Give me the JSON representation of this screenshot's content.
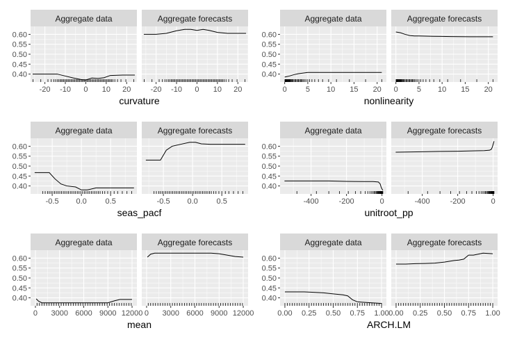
{
  "chart_data": [
    {
      "type": "line",
      "xlabel": "curvature",
      "facets": [
        "Aggregate data",
        "Aggregate forecasts"
      ],
      "ylim": [
        0.36,
        0.64
      ],
      "yticks": [
        0.4,
        0.45,
        0.5,
        0.55,
        0.6
      ],
      "ytick_labels": [
        "0.40",
        "0.45",
        "0.50",
        "0.55",
        "0.60"
      ],
      "xlim": [
        -27,
        25
      ],
      "xticks": [
        -20,
        -10,
        0,
        10,
        20
      ],
      "xtick_labels": [
        "-20",
        "-10",
        "0",
        "10",
        "20"
      ],
      "series": [
        {
          "facet": "Aggregate data",
          "x": [
            -26,
            -18,
            -14,
            -10,
            -6,
            -2,
            0,
            3,
            6,
            9,
            12,
            18,
            24
          ],
          "y": [
            0.4,
            0.4,
            0.4,
            0.39,
            0.38,
            0.372,
            0.37,
            0.38,
            0.378,
            0.382,
            0.393,
            0.395,
            0.395
          ]
        },
        {
          "facet": "Aggregate forecasts",
          "x": [
            -26,
            -20,
            -15,
            -10,
            -6,
            -3,
            0,
            3,
            6,
            10,
            15,
            20,
            24
          ],
          "y": [
            0.6,
            0.6,
            0.605,
            0.618,
            0.625,
            0.625,
            0.62,
            0.625,
            0.62,
            0.61,
            0.605,
            0.605,
            0.605
          ]
        }
      ],
      "rug": [
        -25.8,
        -22,
        -18.5,
        -16.9,
        -15.7,
        -14.8,
        -14.0,
        -13.3,
        -12.6,
        -12.0,
        -11.4,
        -10.8,
        -10.2,
        -9.6,
        -9.0,
        -8.4,
        -7.8,
        -7.2,
        -6.6,
        -6.0,
        -5.4,
        -4.8,
        -4.2,
        -3.6,
        -3.0,
        -2.4,
        -1.8,
        -1.2,
        -0.6,
        0,
        0.6,
        1.2,
        1.8,
        2.4,
        3.0,
        3.6,
        4.2,
        4.8,
        5.4,
        6.0,
        6.6,
        7.2,
        7.8,
        8.4,
        9.0,
        9.6,
        10.2,
        10.8,
        11.4,
        12.0,
        12.6,
        13.3,
        14.2,
        15.5,
        17.2,
        19.6,
        23.5
      ],
      "grid": true
    },
    {
      "type": "line",
      "xlabel": "nonlinearity",
      "facets": [
        "Aggregate data",
        "Aggregate forecasts"
      ],
      "ylim": [
        0.36,
        0.64
      ],
      "yticks": [
        0.4,
        0.45,
        0.5,
        0.55,
        0.6
      ],
      "ytick_labels": [
        "0.40",
        "0.45",
        "0.50",
        "0.55",
        "0.60"
      ],
      "xlim": [
        -1,
        22
      ],
      "xticks": [
        0,
        5,
        10,
        15,
        20
      ],
      "xtick_labels": [
        "0",
        "5",
        "10",
        "15",
        "20"
      ],
      "series": [
        {
          "facet": "Aggregate data",
          "x": [
            0,
            1,
            2,
            3,
            4,
            5,
            8,
            12,
            16,
            21
          ],
          "y": [
            0.385,
            0.39,
            0.397,
            0.402,
            0.405,
            0.408,
            0.408,
            0.408,
            0.408,
            0.408
          ]
        },
        {
          "facet": "Aggregate forecasts",
          "x": [
            0,
            1,
            2,
            3,
            4,
            5,
            8,
            12,
            16,
            21
          ],
          "y": [
            0.612,
            0.608,
            0.6,
            0.594,
            0.592,
            0.592,
            0.59,
            0.589,
            0.588,
            0.588
          ]
        }
      ],
      "rug": [
        0.05,
        0.1,
        0.15,
        0.2,
        0.25,
        0.3,
        0.35,
        0.4,
        0.5,
        0.6,
        0.7,
        0.8,
        0.9,
        1.0,
        1.1,
        1.2,
        1.35,
        1.5,
        1.65,
        1.8,
        2.0,
        2.2,
        2.4,
        2.6,
        2.8,
        3.0,
        3.2,
        3.4,
        3.6,
        3.8,
        4.0,
        4.3,
        4.6,
        5.0,
        5.4,
        5.9,
        6.5,
        7.3,
        8.2,
        9.5,
        11.2,
        14.0,
        17.5,
        21.0
      ],
      "grid": true
    },
    {
      "type": "line",
      "xlabel": "seas_pacf",
      "facets": [
        "Aggregate data",
        "Aggregate forecasts"
      ],
      "ylim": [
        0.36,
        0.64
      ],
      "yticks": [
        0.4,
        0.45,
        0.5,
        0.55,
        0.6
      ],
      "ytick_labels": [
        "0.40",
        "0.45",
        "0.50",
        "0.55",
        "0.60"
      ],
      "xlim": [
        -0.87,
        0.95
      ],
      "xticks": [
        -0.5,
        0.0,
        0.5
      ],
      "xtick_labels": [
        "-0.5",
        "0.0",
        "0.5"
      ],
      "series": [
        {
          "facet": "Aggregate data",
          "x": [
            -0.8,
            -0.55,
            -0.45,
            -0.35,
            -0.25,
            -0.1,
            0.0,
            0.1,
            0.25,
            0.4,
            0.6,
            0.9
          ],
          "y": [
            0.467,
            0.467,
            0.435,
            0.41,
            0.4,
            0.395,
            0.38,
            0.38,
            0.39,
            0.39,
            0.39,
            0.39
          ]
        },
        {
          "facet": "Aggregate forecasts",
          "x": [
            -0.8,
            -0.55,
            -0.45,
            -0.35,
            -0.2,
            -0.05,
            0.05,
            0.15,
            0.3,
            0.5,
            0.7,
            0.9
          ],
          "y": [
            0.53,
            0.53,
            0.58,
            0.6,
            0.61,
            0.62,
            0.62,
            0.612,
            0.61,
            0.61,
            0.61,
            0.61
          ]
        }
      ],
      "rug": [
        -0.66,
        -0.62,
        -0.58,
        -0.55,
        -0.52,
        -0.49,
        -0.46,
        -0.43,
        -0.4,
        -0.37,
        -0.34,
        -0.31,
        -0.28,
        -0.25,
        -0.22,
        -0.19,
        -0.16,
        -0.13,
        -0.1,
        -0.07,
        -0.04,
        -0.01,
        0.02,
        0.05,
        0.08,
        0.11,
        0.14,
        0.17,
        0.2,
        0.23,
        0.26,
        0.29,
        0.32,
        0.36,
        0.4,
        0.45,
        0.5,
        0.56,
        0.62,
        0.7,
        0.78,
        0.86
      ],
      "grid": true
    },
    {
      "type": "line",
      "xlabel": "unitroot_pp",
      "facets": [
        "Aggregate data",
        "Aggregate forecasts"
      ],
      "ylim": [
        0.36,
        0.64
      ],
      "yticks": [
        0.4,
        0.45,
        0.5,
        0.55,
        0.6
      ],
      "ytick_labels": [
        "0.40",
        "0.45",
        "0.50",
        "0.55",
        "0.60"
      ],
      "xlim": [
        -575,
        25
      ],
      "xticks": [
        -400,
        -200,
        0
      ],
      "xtick_labels": [
        "-400",
        "-200",
        "0"
      ],
      "series": [
        {
          "facet": "Aggregate data",
          "x": [
            -550,
            -400,
            -300,
            -200,
            -100,
            -50,
            -20,
            -10,
            -5,
            0,
            5
          ],
          "y": [
            0.425,
            0.425,
            0.425,
            0.423,
            0.422,
            0.422,
            0.42,
            0.41,
            0.395,
            0.385,
            0.378
          ]
        },
        {
          "facet": "Aggregate forecasts",
          "x": [
            -550,
            -400,
            -300,
            -200,
            -100,
            -50,
            -20,
            -10,
            -5,
            0,
            5
          ],
          "y": [
            0.57,
            0.572,
            0.574,
            0.575,
            0.577,
            0.578,
            0.58,
            0.585,
            0.595,
            0.61,
            0.625
          ]
        }
      ],
      "rug": [
        -480,
        -370,
        -300,
        -240,
        -190,
        -150,
        -120,
        -95,
        -80,
        -68,
        -58,
        -50,
        -44,
        -38,
        -33,
        -29,
        -25,
        -22,
        -19,
        -16,
        -14,
        -12,
        -10,
        -8,
        -6.5,
        -5,
        -3.8,
        -2.6,
        -1.5,
        -0.5,
        0.5,
        1.5,
        3,
        5
      ],
      "grid": true
    },
    {
      "type": "line",
      "xlabel": "mean",
      "facets": [
        "Aggregate data",
        "Aggregate forecasts"
      ],
      "ylim": [
        0.36,
        0.64
      ],
      "yticks": [
        0.4,
        0.45,
        0.5,
        0.55,
        0.6
      ],
      "ytick_labels": [
        "0.40",
        "0.45",
        "0.50",
        "0.55",
        "0.60"
      ],
      "xlim": [
        -600,
        12600
      ],
      "xticks": [
        0,
        3000,
        6000,
        9000,
        12000
      ],
      "xtick_labels": [
        "0",
        "3000",
        "6000",
        "9000",
        "12000"
      ],
      "series": [
        {
          "facet": "Aggregate data",
          "x": [
            100,
            400,
            800,
            1500,
            3000,
            6000,
            8000,
            9000,
            9800,
            10500,
            12000
          ],
          "y": [
            0.395,
            0.383,
            0.375,
            0.375,
            0.375,
            0.375,
            0.375,
            0.375,
            0.385,
            0.392,
            0.392
          ]
        },
        {
          "facet": "Aggregate forecasts",
          "x": [
            100,
            500,
            1000,
            1500,
            3000,
            6000,
            8000,
            9000,
            10000,
            11000,
            12000
          ],
          "y": [
            0.605,
            0.62,
            0.625,
            0.625,
            0.625,
            0.625,
            0.625,
            0.622,
            0.615,
            0.608,
            0.605
          ]
        }
      ],
      "rug": [
        200,
        500,
        800,
        1100,
        1400,
        1700,
        2000,
        2300,
        2600,
        2900,
        3200,
        3500,
        3800,
        4100,
        4400,
        4700,
        5000,
        5300,
        5600,
        5900,
        6200,
        6500,
        6800,
        7100,
        7400,
        7700,
        8000,
        8300,
        8600,
        8900,
        9200,
        9500,
        9800,
        10100,
        10400,
        10700,
        11000,
        11300,
        11600,
        11900
      ],
      "grid": true
    },
    {
      "type": "line",
      "xlabel": "ARCH.LM",
      "facets": [
        "Aggregate data",
        "Aggregate forecasts"
      ],
      "ylim": [
        0.36,
        0.64
      ],
      "yticks": [
        0.4,
        0.45,
        0.5,
        0.55,
        0.6
      ],
      "ytick_labels": [
        "0.40",
        "0.45",
        "0.50",
        "0.55",
        "0.60"
      ],
      "xlim": [
        -0.05,
        1.05
      ],
      "xticks": [
        0.0,
        0.25,
        0.5,
        0.75,
        1.0
      ],
      "xtick_labels": [
        "0.00",
        "0.25",
        "0.50",
        "0.75",
        "1.00"
      ],
      "series": [
        {
          "facet": "Aggregate data",
          "x": [
            0.0,
            0.1,
            0.2,
            0.3,
            0.4,
            0.5,
            0.6,
            0.65,
            0.7,
            0.75,
            0.8,
            0.9,
            1.0
          ],
          "y": [
            0.43,
            0.43,
            0.43,
            0.428,
            0.425,
            0.42,
            0.415,
            0.41,
            0.39,
            0.38,
            0.378,
            0.375,
            0.372
          ]
        },
        {
          "facet": "Aggregate forecasts",
          "x": [
            0.0,
            0.1,
            0.2,
            0.3,
            0.4,
            0.5,
            0.6,
            0.65,
            0.7,
            0.75,
            0.8,
            0.9,
            1.0
          ],
          "y": [
            0.57,
            0.57,
            0.572,
            0.573,
            0.575,
            0.58,
            0.588,
            0.59,
            0.595,
            0.615,
            0.615,
            0.625,
            0.622
          ]
        }
      ],
      "rug": [
        0.0,
        0.025,
        0.05,
        0.075,
        0.1,
        0.125,
        0.15,
        0.175,
        0.2,
        0.225,
        0.25,
        0.275,
        0.3,
        0.325,
        0.35,
        0.375,
        0.4,
        0.425,
        0.45,
        0.475,
        0.5,
        0.525,
        0.55,
        0.575,
        0.6,
        0.625,
        0.65,
        0.675,
        0.7,
        0.725,
        0.75,
        0.775,
        0.8,
        0.825,
        0.85,
        0.875,
        0.9,
        0.925,
        0.95,
        0.975,
        1.0
      ],
      "grid": true
    }
  ]
}
